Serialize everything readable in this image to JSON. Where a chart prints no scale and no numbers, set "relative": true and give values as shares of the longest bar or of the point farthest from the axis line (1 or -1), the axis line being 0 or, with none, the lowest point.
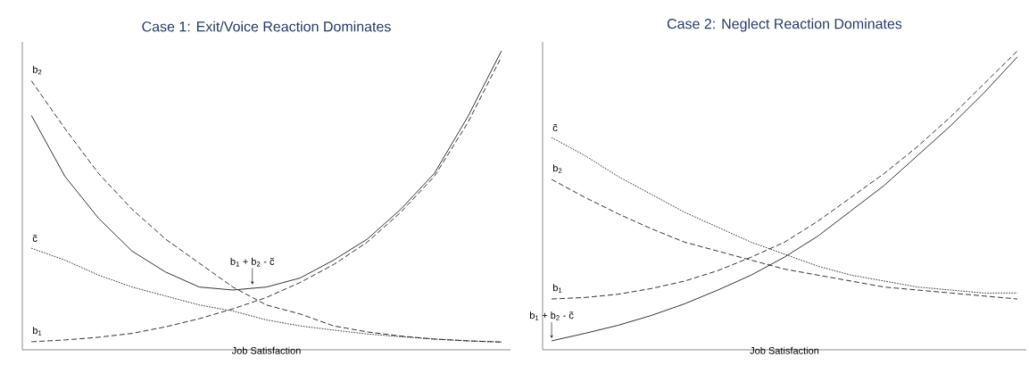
{
  "chart_data": [
    {
      "type": "line",
      "title": "Case 1: Exit/Voice Reaction Dominates",
      "xlabel": "Job Satisfaction",
      "relative": true,
      "tick_labels": false,
      "categories": [
        null,
        null,
        null,
        null,
        null,
        null,
        null,
        null,
        null,
        null,
        null,
        null,
        null,
        null,
        null
      ],
      "series": [
        {
          "name": "b$_{1}$",
          "color": "#000000",
          "line_style": "dashed",
          "values": [
            0.027,
            0.033,
            0.042,
            0.055,
            0.077,
            0.104,
            0.137,
            0.175,
            0.225,
            0.285,
            0.36,
            0.46,
            0.58,
            0.76,
            0.98
          ]
        },
        {
          "name": "b$_{2}$",
          "color": "#000000",
          "line_style": "dashed",
          "values": [
            0.9,
            0.74,
            0.59,
            0.47,
            0.37,
            0.29,
            0.21,
            0.15,
            0.12,
            0.08,
            0.06,
            0.046,
            0.036,
            0.03,
            0.026
          ]
        },
        {
          "name": "c̃",
          "color": "#000000",
          "line_style": "dotted",
          "values": [
            0.34,
            0.3,
            0.25,
            0.21,
            0.18,
            0.15,
            0.13,
            0.1,
            0.08,
            0.066,
            0.053,
            0.044,
            0.036,
            0.03,
            0.026
          ]
        },
        {
          "name": "b$_{1}$ + b$_{2}$ - c̃",
          "color": "#000000",
          "line_style": "solid",
          "values": [
            0.784,
            0.58,
            0.44,
            0.33,
            0.26,
            0.21,
            0.2,
            0.21,
            0.24,
            0.3,
            0.37,
            0.47,
            0.59,
            0.78,
            1.0
          ]
        }
      ]
    },
    {
      "type": "line",
      "title": "Case 2: Neglect Reaction Dominates",
      "xlabel": "Job Satisfaction",
      "relative": true,
      "tick_labels": false,
      "categories": [
        null,
        null,
        null,
        null,
        null,
        null,
        null,
        null,
        null,
        null,
        null,
        null,
        null,
        null,
        null
      ],
      "series": [
        {
          "name": "b$_{1}$",
          "color": "#000000",
          "line_style": "dashed",
          "values": [
            0.17,
            0.175,
            0.186,
            0.205,
            0.23,
            0.265,
            0.31,
            0.36,
            0.43,
            0.51,
            0.59,
            0.68,
            0.78,
            0.89,
            1.0
          ]
        },
        {
          "name": "b$_{2}$",
          "color": "#000000",
          "line_style": "dashed",
          "values": [
            0.57,
            0.51,
            0.455,
            0.405,
            0.36,
            0.33,
            0.3,
            0.27,
            0.25,
            0.23,
            0.21,
            0.2,
            0.19,
            0.18,
            0.17
          ]
        },
        {
          "name": "c̃",
          "color": "#000000",
          "line_style": "dotted",
          "values": [
            0.71,
            0.65,
            0.58,
            0.52,
            0.46,
            0.41,
            0.36,
            0.32,
            0.28,
            0.25,
            0.23,
            0.21,
            0.2,
            0.19,
            0.19
          ]
        },
        {
          "name": "b$_{1}$ + b$_{2}$ - c̃",
          "color": "#000000",
          "line_style": "solid",
          "values": [
            0.03,
            0.055,
            0.082,
            0.115,
            0.154,
            0.2,
            0.25,
            0.31,
            0.38,
            0.465,
            0.55,
            0.65,
            0.75,
            0.86,
            0.98
          ]
        }
      ]
    }
  ]
}
